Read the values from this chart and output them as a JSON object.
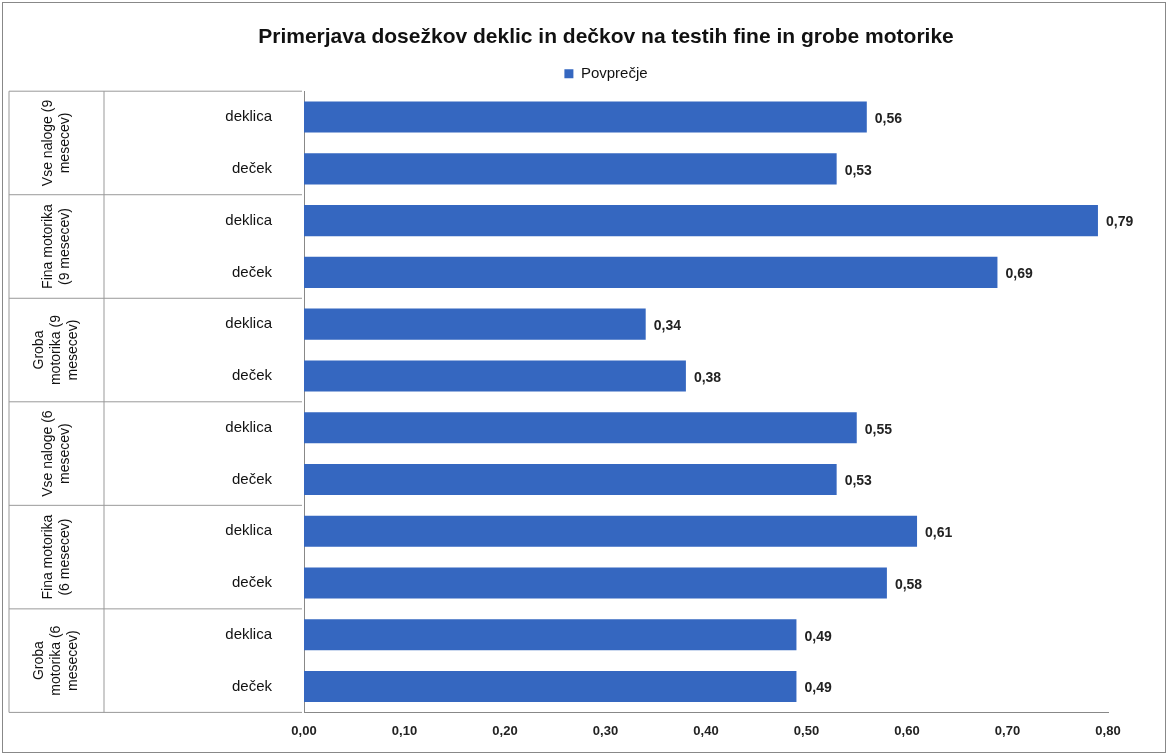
{
  "chart_data": {
    "type": "bar",
    "orientation": "horizontal",
    "title": "Primerjava  dosežkov deklic in dečkov na testih fine in grobe motorike",
    "categories": [
      "deklica",
      "deček",
      "deklica",
      "deček",
      "deklica",
      "deček",
      "deklica",
      "deček",
      "deklica",
      "deček",
      "deklica",
      "deček"
    ],
    "series": [
      {
        "name": "Povprečje",
        "color": "#3567c0",
        "values": [
          0.56,
          0.53,
          0.79,
          0.69,
          0.34,
          0.38,
          0.55,
          0.53,
          0.61,
          0.58,
          0.49,
          0.49
        ],
        "value_labels": [
          "0,56",
          "0,53",
          "0,79",
          "0,69",
          "0,34",
          "0,38",
          "0,55",
          "0,53",
          "0,61",
          "0,58",
          "0,49",
          "0,49"
        ]
      }
    ],
    "annotations": [
      "Vse naloge (9 mesecev)",
      "Fina motorika (9 mesecev)",
      "Groba motorika (9 mesecev)",
      "Vse naloge (6 mesecev)",
      "Fina motorika (6 mesecev)",
      "Groba motorika (6 mesecev)"
    ],
    "xlim": [
      0,
      0.8
    ],
    "xticks": [
      {
        "value": 0,
        "label": "0,00"
      },
      {
        "value": 0.1,
        "label": "0,10"
      },
      {
        "value": 0.2,
        "label": "0,20"
      },
      {
        "value": 0.3,
        "label": "0,30"
      },
      {
        "value": 0.4,
        "label": "0,40"
      },
      {
        "value": 0.5,
        "label": "0,50"
      },
      {
        "value": 0.6,
        "label": "0,60"
      },
      {
        "value": 0.7,
        "label": "0,70"
      },
      {
        "value": 0.8,
        "label": "0,80"
      }
    ],
    "legend": "top",
    "grid": false
  }
}
